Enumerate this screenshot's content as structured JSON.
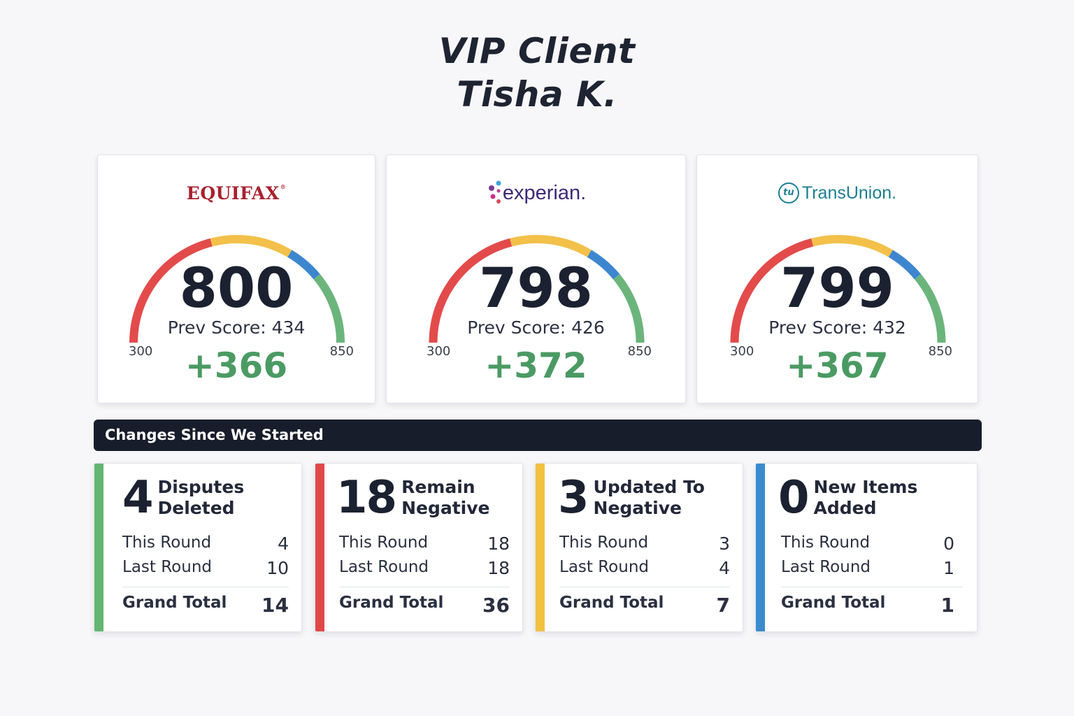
{
  "header": {
    "line1": "VIP Client",
    "line2": "Tisha K."
  },
  "bureaus": [
    {
      "name": "EQUIFAX",
      "logo_style": "equifax",
      "score": "800",
      "prev_label": "Prev Score: 434",
      "delta": "+366",
      "scale_min": "300",
      "scale_max": "850"
    },
    {
      "name": "experian.",
      "logo_style": "experian",
      "score": "798",
      "prev_label": "Prev Score: 426",
      "delta": "+372",
      "scale_min": "300",
      "scale_max": "850"
    },
    {
      "name": "TransUnion.",
      "logo_style": "transunion",
      "score": "799",
      "prev_label": "Prev Score: 432",
      "delta": "+367",
      "scale_min": "300",
      "scale_max": "850"
    }
  ],
  "gauge_colors": {
    "red": "#e34b4b",
    "yellow": "#f3c04a",
    "blue": "#3d86cf",
    "green": "#6bb57c"
  },
  "banner": {
    "label": "Changes Since We Started"
  },
  "stats": [
    {
      "count": "4",
      "title_line1": "Disputes",
      "title_line2": "Deleted",
      "accent": "#62b672",
      "this_round_label": "This Round",
      "this_round": "4",
      "last_round_label": "Last Round",
      "last_round": "10",
      "total_label": "Grand Total",
      "total": "14"
    },
    {
      "count": "18",
      "title_line1": "Remain",
      "title_line2": "Negative",
      "accent": "#e04848",
      "this_round_label": "This Round",
      "this_round": "18",
      "last_round_label": "Last Round",
      "last_round": "18",
      "total_label": "Grand Total",
      "total": "36"
    },
    {
      "count": "3",
      "title_line1": "Updated To",
      "title_line2": "Negative",
      "accent": "#f2c141",
      "this_round_label": "This Round",
      "this_round": "3",
      "last_round_label": "Last Round",
      "last_round": "4",
      "total_label": "Grand Total",
      "total": "7"
    },
    {
      "count": "0",
      "title_line1": "New Items",
      "title_line2": "Added",
      "accent": "#3a8bcd",
      "this_round_label": "This Round",
      "this_round": "0",
      "last_round_label": "Last Round",
      "last_round": "1",
      "total_label": "Grand Total",
      "total": "1"
    }
  ]
}
